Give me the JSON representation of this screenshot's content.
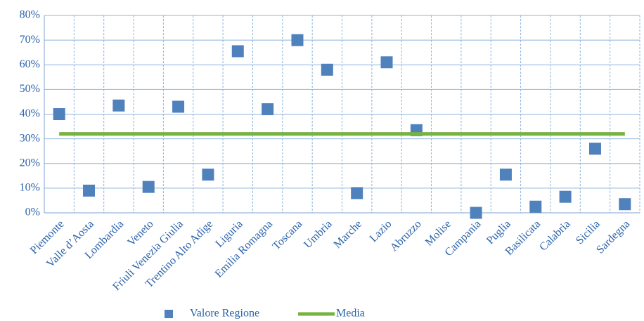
{
  "chart_data": {
    "type": "line",
    "categories": [
      "Piemonte",
      "Valle d’Aosta",
      "Lombardia",
      "Veneto",
      "Friuli Venezia Giulia",
      "Trentino Alto Adige",
      "Liguria",
      "Emilia Romagna",
      "Toscana",
      "Umbria",
      "Marche",
      "Lazio",
      "Abruzzo",
      "Molise",
      "Campania",
      "Puglia",
      "Basilicata",
      "Calabria",
      "Sicilia",
      "Sardegna"
    ],
    "series": [
      {
        "name": "Valore Regione",
        "color": "#4f81bd",
        "mode": "markers",
        "values": [
          40,
          9,
          43.5,
          10.5,
          43,
          15.5,
          65.5,
          42,
          70,
          58,
          8,
          61,
          33.5,
          null,
          0,
          15.5,
          2.5,
          6.5,
          26,
          3.5
        ]
      },
      {
        "name": "Media",
        "color": "#77b341",
        "mode": "lines",
        "values": [
          32,
          32,
          32,
          32,
          32,
          32,
          32,
          32,
          32,
          32,
          32,
          32,
          32,
          32,
          32,
          32,
          32,
          32,
          32,
          32
        ]
      }
    ],
    "ylim": [
      0,
      80
    ],
    "yticks": [
      {
        "value": 0,
        "label": "0%"
      },
      {
        "value": 10,
        "label": "10%"
      },
      {
        "value": 20,
        "label": "20%"
      },
      {
        "value": 30,
        "label": "30%"
      },
      {
        "value": 40,
        "label": "40%"
      },
      {
        "value": 50,
        "label": "50%"
      },
      {
        "value": 60,
        "label": "60%"
      },
      {
        "value": 70,
        "label": "70%"
      },
      {
        "value": 80,
        "label": "80%"
      }
    ],
    "grid": true,
    "legend": "bottom"
  }
}
